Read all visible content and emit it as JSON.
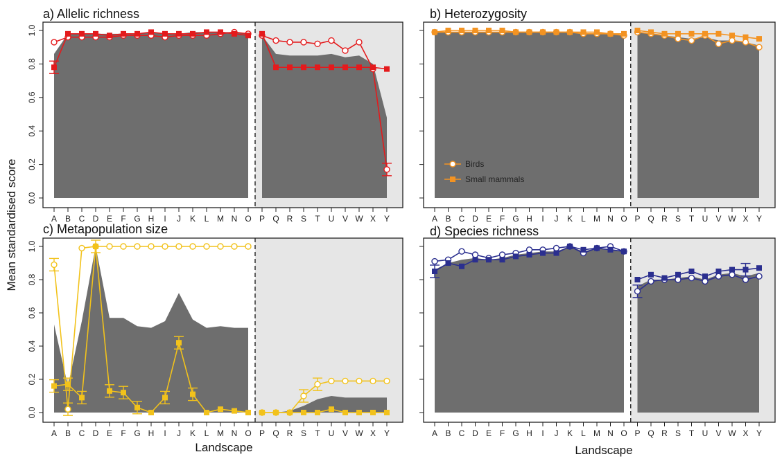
{
  "figure": {
    "xlabel": "Landscape",
    "ylabel": "Mean standardised score",
    "legend": {
      "position": "inside panel b, lower-left",
      "birds": "Birds",
      "mammals": "Small mammals"
    }
  },
  "chart_data": [
    {
      "type": "line",
      "title": "a) Allelic richness",
      "color": "#e41a1c",
      "categories": [
        "A",
        "B",
        "C",
        "D",
        "E",
        "F",
        "G",
        "H",
        "I",
        "J",
        "K",
        "L",
        "M",
        "N",
        "O",
        "P",
        "Q",
        "R",
        "S",
        "T",
        "U",
        "V",
        "W",
        "X",
        "Y"
      ],
      "ylim": [
        0,
        1
      ],
      "yticks": [
        0,
        0.2,
        0.4,
        0.6,
        0.8,
        1
      ],
      "ytick_labels": [
        "0.0",
        "0.2",
        "0.4",
        "0.6",
        "0.8",
        "1.0"
      ],
      "shade_from": "P",
      "divider_after": "O",
      "series": [
        {
          "name": "Birds",
          "marker": "open-circle",
          "values": [
            0.93,
            0.96,
            0.96,
            0.96,
            0.96,
            0.97,
            0.97,
            0.97,
            0.96,
            0.97,
            0.97,
            0.97,
            0.98,
            0.99,
            0.98,
            0.97,
            0.94,
            0.93,
            0.93,
            0.92,
            0.94,
            0.88,
            0.93,
            0.77,
            0.17
          ]
        },
        {
          "name": "Small mammals",
          "marker": "filled-square",
          "values": [
            0.78,
            0.98,
            0.98,
            0.98,
            0.97,
            0.98,
            0.98,
            0.99,
            0.98,
            0.98,
            0.98,
            0.99,
            0.99,
            0.98,
            0.97,
            0.98,
            0.78,
            0.78,
            0.78,
            0.78,
            0.78,
            0.78,
            0.78,
            0.78,
            0.77
          ]
        }
      ],
      "area": [
        0.86,
        0.98,
        0.98,
        0.98,
        0.98,
        0.98,
        0.98,
        0.99,
        0.98,
        0.98,
        0.99,
        0.99,
        0.99,
        0.99,
        0.98,
        0.97,
        0.86,
        0.85,
        0.85,
        0.85,
        0.86,
        0.84,
        0.85,
        0.8,
        0.48
      ],
      "errorbar_points": [
        [
          "Birds",
          "Y"
        ],
        [
          "Small mammals",
          "A"
        ]
      ]
    },
    {
      "type": "line",
      "title": "b) Heterozygosity",
      "color": "#f39322",
      "categories": [
        "A",
        "B",
        "C",
        "D",
        "E",
        "F",
        "G",
        "H",
        "I",
        "J",
        "K",
        "L",
        "M",
        "N",
        "O",
        "P",
        "Q",
        "R",
        "S",
        "T",
        "U",
        "V",
        "W",
        "X",
        "Y"
      ],
      "ylim": [
        0,
        1
      ],
      "shade_from": "P",
      "divider_after": "O",
      "series": [
        {
          "name": "Birds",
          "marker": "open-circle",
          "values": [
            0.99,
            0.99,
            0.99,
            0.99,
            0.99,
            0.99,
            0.99,
            0.99,
            0.99,
            0.99,
            0.99,
            0.98,
            0.98,
            0.98,
            0.97,
            0.99,
            0.98,
            0.97,
            0.95,
            0.94,
            0.97,
            0.92,
            0.94,
            0.93,
            0.9
          ]
        },
        {
          "name": "Small mammals",
          "marker": "filled-square",
          "values": [
            0.99,
            1.0,
            1.0,
            1.0,
            1.0,
            1.0,
            0.99,
            0.99,
            0.99,
            0.99,
            0.99,
            0.99,
            0.99,
            0.98,
            0.98,
            1.0,
            0.99,
            0.98,
            0.98,
            0.98,
            0.98,
            0.98,
            0.97,
            0.96,
            0.95
          ]
        }
      ],
      "area": [
        0.99,
        0.99,
        0.99,
        0.99,
        0.99,
        0.99,
        0.99,
        0.99,
        0.99,
        0.99,
        0.99,
        0.98,
        0.98,
        0.98,
        0.97,
        0.99,
        0.98,
        0.97,
        0.96,
        0.95,
        0.96,
        0.94,
        0.94,
        0.93,
        0.91
      ],
      "errorbar_points": []
    },
    {
      "type": "line",
      "title": "c) Metapopulation size",
      "color": "#f2c21b",
      "categories": [
        "A",
        "B",
        "C",
        "D",
        "E",
        "F",
        "G",
        "H",
        "I",
        "J",
        "K",
        "L",
        "M",
        "N",
        "O",
        "P",
        "Q",
        "R",
        "S",
        "T",
        "U",
        "V",
        "W",
        "X",
        "Y"
      ],
      "ylim": [
        0,
        1
      ],
      "yticks": [
        0,
        0.2,
        0.4,
        0.6,
        0.8,
        1
      ],
      "ytick_labels": [
        "0.0",
        "0.2",
        "0.4",
        "0.6",
        "0.8",
        "1.0"
      ],
      "shade_from": "P",
      "divider_after": "O",
      "series": [
        {
          "name": "Birds",
          "marker": "open-circle",
          "values": [
            0.89,
            0.02,
            0.99,
            1.0,
            1.0,
            1.0,
            1.0,
            1.0,
            1.0,
            1.0,
            1.0,
            1.0,
            1.0,
            1.0,
            1.0,
            0.0,
            0.0,
            0.0,
            0.1,
            0.17,
            0.19,
            0.19,
            0.19,
            0.19,
            0.19
          ]
        },
        {
          "name": "Small mammals",
          "marker": "filled-square",
          "values": [
            0.16,
            0.17,
            0.09,
            1.0,
            0.13,
            0.12,
            0.03,
            0.0,
            0.09,
            0.42,
            0.11,
            0.0,
            0.02,
            0.01,
            0.0,
            0.0,
            0.0,
            0.0,
            0.0,
            0.0,
            0.02,
            0.0,
            0.0,
            0.0,
            0.0
          ]
        }
      ],
      "area": [
        0.53,
        0.16,
        0.55,
        1.0,
        0.57,
        0.57,
        0.52,
        0.51,
        0.55,
        0.72,
        0.56,
        0.51,
        0.52,
        0.51,
        0.51,
        0.0,
        0.0,
        0.01,
        0.04,
        0.08,
        0.1,
        0.09,
        0.09,
        0.09,
        0.09
      ],
      "errorbar_points": [
        [
          "Birds",
          "A"
        ],
        [
          "Birds",
          "B"
        ],
        [
          "Small mammals",
          "A"
        ],
        [
          "Small mammals",
          "B"
        ],
        [
          "Small mammals",
          "C"
        ],
        [
          "Small mammals",
          "D"
        ],
        [
          "Small mammals",
          "E"
        ],
        [
          "Small mammals",
          "F"
        ],
        [
          "Small mammals",
          "G"
        ],
        [
          "Small mammals",
          "I"
        ],
        [
          "Small mammals",
          "J"
        ],
        [
          "Small mammals",
          "K"
        ],
        [
          "Birds",
          "S"
        ],
        [
          "Birds",
          "T"
        ]
      ]
    },
    {
      "type": "line",
      "title": "d) Species richness",
      "color": "#2b2f8f",
      "categories": [
        "A",
        "B",
        "C",
        "D",
        "E",
        "F",
        "G",
        "H",
        "I",
        "J",
        "K",
        "L",
        "M",
        "N",
        "O",
        "P",
        "Q",
        "R",
        "S",
        "T",
        "U",
        "V",
        "W",
        "X",
        "Y"
      ],
      "ylim": [
        0,
        1
      ],
      "shade_from": "P",
      "divider_after": "O",
      "series": [
        {
          "name": "Birds",
          "marker": "open-circle",
          "values": [
            0.91,
            0.92,
            0.97,
            0.95,
            0.93,
            0.95,
            0.96,
            0.98,
            0.98,
            0.99,
            1.0,
            0.96,
            0.99,
            1.0,
            0.97,
            0.73,
            0.79,
            0.8,
            0.8,
            0.81,
            0.79,
            0.82,
            0.83,
            0.8,
            0.82
          ]
        },
        {
          "name": "Small mammals",
          "marker": "filled-square",
          "values": [
            0.85,
            0.9,
            0.88,
            0.92,
            0.92,
            0.92,
            0.94,
            0.95,
            0.96,
            0.96,
            1.0,
            0.98,
            0.99,
            0.98,
            0.97,
            0.8,
            0.83,
            0.81,
            0.83,
            0.85,
            0.82,
            0.85,
            0.86,
            0.86,
            0.87
          ]
        }
      ],
      "area": [
        0.86,
        0.9,
        0.92,
        0.93,
        0.92,
        0.93,
        0.95,
        0.96,
        0.97,
        0.97,
        1.0,
        0.97,
        0.99,
        0.98,
        0.97,
        0.76,
        0.8,
        0.8,
        0.81,
        0.82,
        0.8,
        0.83,
        0.84,
        0.82,
        0.84
      ],
      "errorbar_points": [
        [
          "Birds",
          "P"
        ],
        [
          "Small mammals",
          "A"
        ],
        [
          "Small mammals",
          "X"
        ]
      ]
    }
  ]
}
